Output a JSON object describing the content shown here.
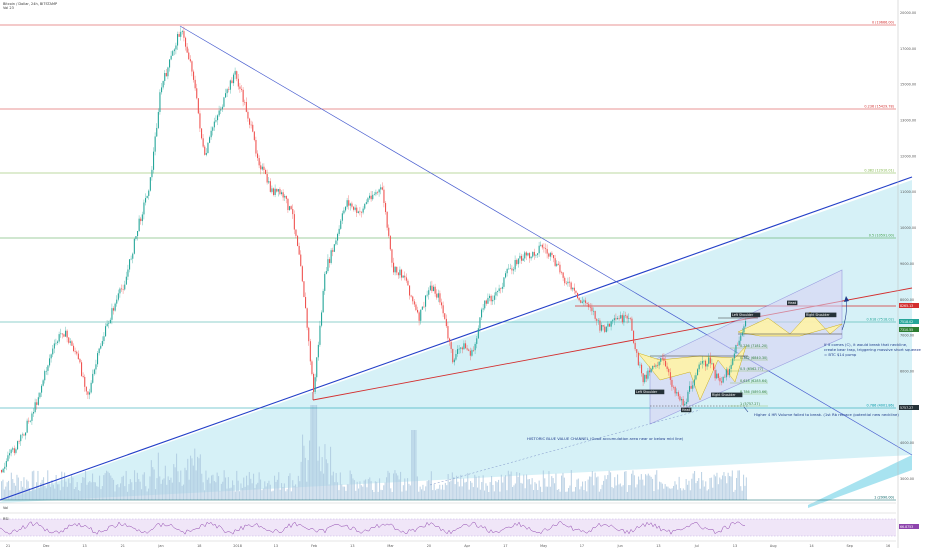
{
  "header": {
    "line1": "Bitcoin / Dollar, 24h, BITSTAMP",
    "line2": "Vol 23"
  },
  "chart_data": {
    "type": "candlestick",
    "title": "Bitcoin / Dollar, 24h, BITSTAMP",
    "x_ticks": [
      "21",
      "Dec",
      "13",
      "21",
      "Jan",
      "18",
      "2018",
      "13",
      "Feb",
      "13",
      "Mar",
      "20",
      "Apr",
      "17",
      "May",
      "17",
      "Jun",
      "13",
      "Jul",
      "13",
      "Aug",
      "14",
      "Sep",
      "16"
    ],
    "y_ticks": [
      "20000.00",
      "17000.00",
      "15000.00",
      "13000.00",
      "12000.00",
      "11000.00",
      "10000.00",
      "9000.00",
      "8000.00",
      "7000.00",
      "6000.00",
      "5000.00",
      "4000.00",
      "3000.00"
    ],
    "fib_levels": [
      {
        "label": "0 (19666.00)",
        "color": "#d32f2f"
      },
      {
        "label": "0.236 (15429.78)",
        "color": "#d32f2f"
      },
      {
        "label": "0.382 (12910.01)",
        "color": "#7cb342"
      },
      {
        "label": "0.5 (10591.00)",
        "color": "#43a047"
      },
      {
        "label": "0.618 (7518.02)",
        "color": "#26a69a"
      },
      {
        "label": "0.786 (4001.86)",
        "color": "#0097a7"
      },
      {
        "label": "1 (2990.00)",
        "color": "#006064"
      }
    ],
    "inner_fibs": [
      {
        "label": "0.236 (7181.20)"
      },
      {
        "label": "0.382 (6840.30)"
      },
      {
        "label": "0.5 (6562.77)"
      },
      {
        "label": "0.618 (6285.64)"
      },
      {
        "label": "0.786 (5893.66)"
      },
      {
        "label": "1 (5757.27)"
      }
    ],
    "price_tags": [
      {
        "text": "8265.13",
        "color": "#d32f2f"
      },
      {
        "text": "7518.02",
        "color": "#26a69a"
      },
      {
        "text": "7310.55",
        "color": "#2e7d32"
      },
      {
        "text": "5757.27",
        "color": "#263238"
      }
    ],
    "pattern_labels": {
      "left_shoulder_1": "Left Shoulder",
      "head_1": "Head",
      "right_shoulder_1": "Right Shoulder",
      "left_shoulder_2": "Left Shoulder",
      "head_2": "Head",
      "right_shoulder_2": "Right Shoulder"
    },
    "annotations": {
      "callout_line1": "If it comes (C), it would break that neckline,",
      "callout_line2": "create bear trap, triggering massive short squeeze",
      "callout_line3": "= BTC $14 pump",
      "volume_note": "Higher 4 HR Volume failed to break. (1st Rb retrace /potential new neckline)",
      "channel_note": "HISTORIC BLUE VALUE CHANNEL (Good accumulation area near or below mid line)"
    },
    "volume_label": "Vol",
    "rsi_label": "RSI",
    "rsi_value": "66.8753",
    "grid": false,
    "colors": {
      "up": "#26a69a",
      "down": "#ef5350",
      "trend_blue": "#2340c8",
      "trend_red": "#d32f2f",
      "channel_fill": "#cfeff6",
      "pattern_fill": "#fff3a8",
      "rsi_fill": "#eadcf5",
      "rsi_line": "#8e44ad"
    }
  }
}
